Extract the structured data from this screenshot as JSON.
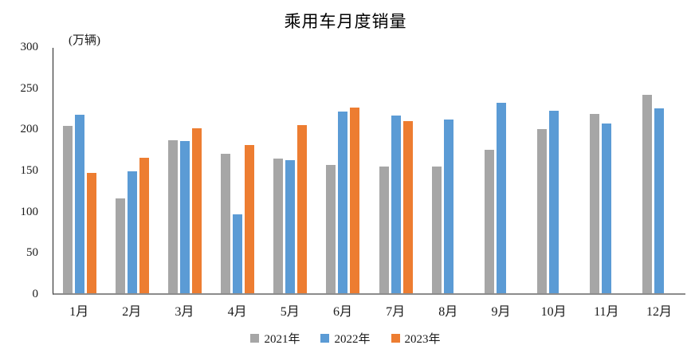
{
  "title": "乘用车月度销量",
  "y_axis_unit": "(万辆)",
  "chart_data": {
    "type": "bar",
    "title": "乘用车月度销量",
    "ylabel": "(万辆)",
    "xlabel": "",
    "ylim": [
      0,
      300
    ],
    "yticks": [
      0,
      50,
      100,
      150,
      200,
      250,
      300
    ],
    "grid": false,
    "legend_position": "bottom",
    "categories": [
      "1月",
      "2月",
      "3月",
      "4月",
      "5月",
      "6月",
      "7月",
      "8月",
      "9月",
      "10月",
      "11月",
      "12月"
    ],
    "series": [
      {
        "name": "2021年",
        "color": "#A6A6A6",
        "values": [
          204.5,
          115.6,
          187.4,
          170.8,
          164.6,
          156.9,
          155.1,
          155.2,
          175.1,
          200.7,
          219.2,
          242.2
        ]
      },
      {
        "name": "2022年",
        "color": "#5B9BD5",
        "values": [
          218.6,
          148.7,
          186.4,
          96.5,
          162.3,
          222.2,
          217.4,
          212.5,
          233.2,
          223.1,
          207.5,
          226.3
        ]
      },
      {
        "name": "2023年",
        "color": "#ED7D31",
        "values": [
          146.9,
          165.3,
          201.7,
          181.1,
          205.1,
          226.8,
          210.0,
          null,
          null,
          null,
          null,
          null
        ]
      }
    ]
  }
}
